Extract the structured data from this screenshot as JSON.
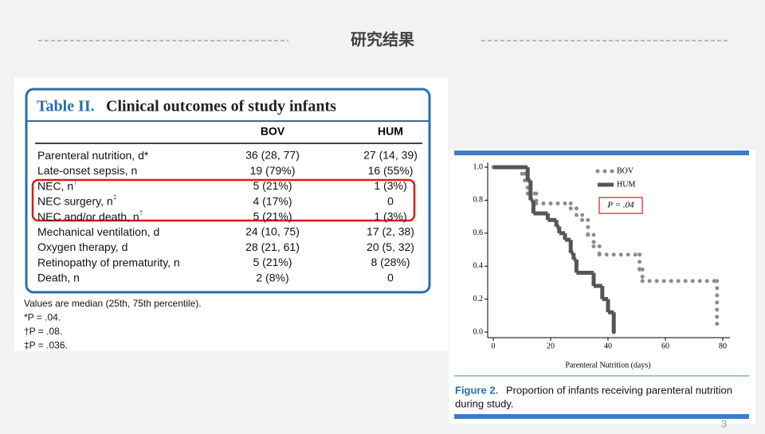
{
  "header": {
    "title": "研究结果"
  },
  "table": {
    "caption_label": "Table II.",
    "caption_text": "Clinical outcomes of study infants",
    "columns": [
      "BOV",
      "HUM"
    ],
    "rows": [
      {
        "label": "Parenteral nutrition, d*",
        "mark": null,
        "values": [
          "36 (28, 77)",
          "27 (14, 39)"
        ]
      },
      {
        "label": "Late-onset sepsis, n",
        "mark": null,
        "values": [
          "19 (79%)",
          "16 (55%)"
        ]
      },
      {
        "label": "NEC, n",
        "mark": "†",
        "values": [
          "5 (21%)",
          "1 (3%)"
        ]
      },
      {
        "label": "NEC surgery, n",
        "mark": "‡",
        "values": [
          "4 (17%)",
          "0"
        ]
      },
      {
        "label": "NEC and/or death, n",
        "mark": "†",
        "values": [
          "5 (21%)",
          "1 (3%)"
        ]
      },
      {
        "label": "Mechanical ventilation, d",
        "mark": null,
        "values": [
          "24 (10, 75)",
          "17 (2, 38)"
        ]
      },
      {
        "label": "Oxygen therapy, d",
        "mark": null,
        "values": [
          "28 (21, 61)",
          "20 (5, 32)"
        ]
      },
      {
        "label": "Retinopathy of prematurity, n",
        "mark": null,
        "values": [
          "5 (21%)",
          "8 (28%)"
        ]
      },
      {
        "label": "Death, n",
        "mark": null,
        "values": [
          "2 (8%)",
          "0"
        ]
      }
    ],
    "footnotes": [
      "Values are median (25th, 75th percentile).",
      "*P = .04.",
      "†P = .08.",
      "‡P = .036."
    ]
  },
  "chart_data": {
    "type": "step",
    "xlabel": "Parenteral Nutrition (days)",
    "xlim": [
      0,
      80
    ],
    "xticks": [
      0,
      20,
      40,
      60,
      80
    ],
    "ylim": [
      0,
      1
    ],
    "yticks": [
      {
        "value": 0,
        "label": "0.0"
      },
      0.2,
      0.4,
      0.6,
      0.8,
      {
        "value": 1,
        "label": "1.0"
      }
    ],
    "annotation": "P = .04",
    "series": [
      {
        "name": "BOV",
        "color": "#8c8c8c",
        "style": "dotted",
        "x": [
          0,
          10,
          11,
          12,
          15,
          27,
          29,
          31,
          33,
          35,
          37,
          51,
          52,
          78
        ],
        "values": [
          1,
          0.96,
          0.92,
          0.84,
          0.78,
          0.75,
          0.71,
          0.68,
          0.59,
          0.52,
          0.47,
          0.38,
          0.31,
          0.05
        ]
      },
      {
        "name": "HUM",
        "color": "#555555",
        "style": "solid",
        "x": [
          0,
          12,
          13,
          14,
          19,
          22,
          23,
          25,
          27,
          28,
          29,
          35,
          38,
          40,
          42
        ],
        "values": [
          1,
          0.92,
          0.8,
          0.72,
          0.68,
          0.64,
          0.6,
          0.56,
          0.48,
          0.44,
          0.36,
          0.28,
          0.2,
          0.12,
          0
        ]
      }
    ]
  },
  "figure_caption": {
    "label": "Figure 2.",
    "text": "Proportion of infants receiving parenteral nutrition",
    "text2": "during study."
  },
  "page_number": "3"
}
